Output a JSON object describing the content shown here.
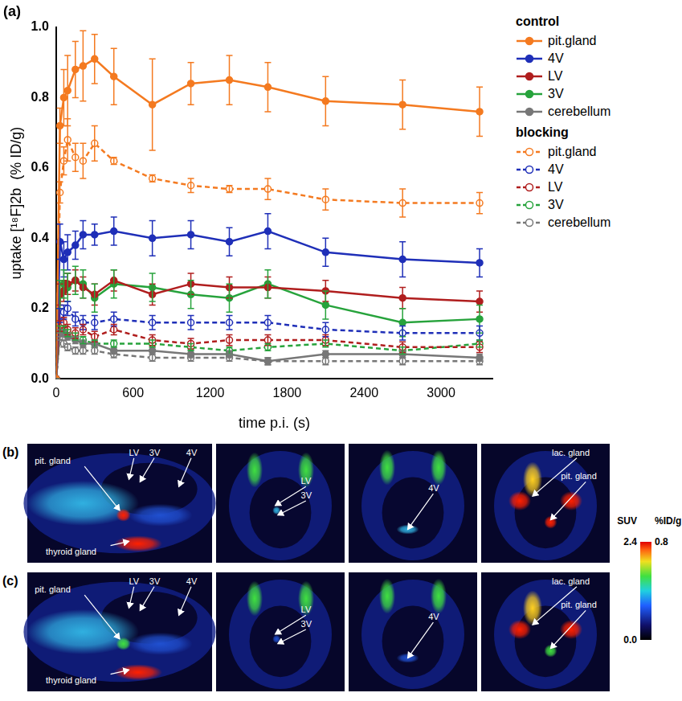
{
  "chart_data": {
    "type": "line",
    "panel_label": "(a)",
    "x_label": "time p.i. (s)",
    "y_label": "uptake [¹⁸F]2b  (% ID/g)",
    "x": [
      0,
      30,
      60,
      90,
      150,
      210,
      300,
      450,
      750,
      1050,
      1350,
      1650,
      2100,
      2700,
      3300
    ],
    "xlim": [
      0,
      3400
    ],
    "xticks": [
      0,
      600,
      1200,
      1800,
      2400,
      3000
    ],
    "ylim": [
      0,
      1
    ],
    "yticks": [
      {
        "value": 0,
        "label": "0.0"
      },
      0.2,
      0.4,
      0.6,
      0.8,
      {
        "value": 1,
        "label": "1.0"
      }
    ],
    "grid": false,
    "legend": "right",
    "series": [
      {
        "name": "pit.gland",
        "group": "control",
        "color": "#f47a20",
        "marker": "circle",
        "line_style": "solid",
        "values": [
          0,
          0.72,
          0.8,
          0.82,
          0.88,
          0.89,
          0.91,
          0.86,
          0.78,
          0.84,
          0.85,
          0.83,
          0.79,
          0.78,
          0.76
        ],
        "errors": [
          0,
          0.05,
          0.08,
          0.1,
          0.08,
          0.1,
          0.07,
          0.08,
          0.13,
          0.06,
          0.07,
          0.07,
          0.07,
          0.07,
          0.07
        ]
      },
      {
        "name": "4V",
        "group": "control",
        "color": "#1f2fb8",
        "marker": "circle",
        "line_style": "solid",
        "values": [
          0,
          0.39,
          0.34,
          0.36,
          0.38,
          0.41,
          0.41,
          0.42,
          0.4,
          0.41,
          0.39,
          0.42,
          0.36,
          0.34,
          0.33
        ],
        "errors": [
          0,
          0.05,
          0.05,
          0.05,
          0.04,
          0.04,
          0.03,
          0.04,
          0.05,
          0.04,
          0.04,
          0.05,
          0.04,
          0.05,
          0.04
        ]
      },
      {
        "name": "LV",
        "group": "control",
        "color": "#b01e1e",
        "marker": "circle",
        "line_style": "solid",
        "values": [
          0,
          0.24,
          0.25,
          0.27,
          0.28,
          0.26,
          0.24,
          0.28,
          0.24,
          0.27,
          0.26,
          0.26,
          0.25,
          0.23,
          0.22
        ],
        "errors": [
          0,
          0.03,
          0.03,
          0.03,
          0.03,
          0.03,
          0.03,
          0.03,
          0.03,
          0.03,
          0.03,
          0.03,
          0.03,
          0.03,
          0.03
        ]
      },
      {
        "name": "3V",
        "group": "control",
        "color": "#27a33c",
        "marker": "circle",
        "line_style": "solid",
        "values": [
          0,
          0.24,
          0.27,
          0.26,
          0.28,
          0.27,
          0.23,
          0.27,
          0.26,
          0.24,
          0.23,
          0.27,
          0.21,
          0.16,
          0.17
        ],
        "errors": [
          0,
          0.04,
          0.04,
          0.04,
          0.04,
          0.04,
          0.04,
          0.04,
          0.04,
          0.04,
          0.04,
          0.04,
          0.04,
          0.04,
          0.04
        ]
      },
      {
        "name": "cerebellum",
        "group": "control",
        "color": "#777777",
        "marker": "circle",
        "line_style": "solid",
        "values": [
          0,
          0.13,
          0.13,
          0.12,
          0.11,
          0.1,
          0.1,
          0.08,
          0.08,
          0.07,
          0.07,
          0.05,
          0.07,
          0.07,
          0.06
        ],
        "errors": [
          0,
          0.01,
          0.01,
          0.01,
          0.01,
          0.01,
          0.01,
          0.01,
          0.01,
          0.01,
          0.01,
          0.01,
          0.01,
          0.01,
          0.01
        ]
      },
      {
        "name": "pit.gland",
        "group": "blocking",
        "color": "#f47a20",
        "marker": "open circle",
        "line_style": "dashed",
        "values": [
          0,
          0.53,
          0.62,
          0.68,
          0.63,
          0.62,
          0.67,
          0.62,
          0.57,
          0.55,
          0.54,
          0.54,
          0.51,
          0.5,
          0.5
        ],
        "errors": [
          0,
          0.03,
          0.04,
          0.06,
          0.04,
          0.05,
          0.05,
          0.01,
          0.01,
          0.02,
          0.01,
          0.03,
          0.03,
          0.04,
          0.03
        ]
      },
      {
        "name": "4V",
        "group": "blocking",
        "color": "#1f2fb8",
        "marker": "open circle",
        "line_style": "dashed",
        "values": [
          0,
          0.18,
          0.19,
          0.2,
          0.17,
          0.16,
          0.16,
          0.17,
          0.16,
          0.16,
          0.16,
          0.16,
          0.14,
          0.13,
          0.13
        ],
        "errors": [
          0,
          0.02,
          0.02,
          0.02,
          0.02,
          0.02,
          0.02,
          0.02,
          0.02,
          0.02,
          0.02,
          0.02,
          0.02,
          0.02,
          0.02
        ]
      },
      {
        "name": "LV",
        "group": "blocking",
        "color": "#b01e1e",
        "marker": "open circle",
        "line_style": "dashed",
        "values": [
          0,
          0.15,
          0.16,
          0.14,
          0.13,
          0.14,
          0.12,
          0.14,
          0.11,
          0.1,
          0.11,
          0.11,
          0.11,
          0.09,
          0.09
        ],
        "errors": [
          0,
          0.015,
          0.015,
          0.015,
          0.015,
          0.015,
          0.015,
          0.015,
          0.015,
          0.015,
          0.015,
          0.015,
          0.015,
          0.015,
          0.015
        ]
      },
      {
        "name": "3V",
        "group": "blocking",
        "color": "#27a33c",
        "marker": "open circle",
        "line_style": "dashed",
        "values": [
          0,
          0.14,
          0.14,
          0.13,
          0.12,
          0.11,
          0.1,
          0.1,
          0.1,
          0.09,
          0.08,
          0.09,
          0.1,
          0.08,
          0.1
        ],
        "errors": [
          0,
          0.01,
          0.01,
          0.01,
          0.01,
          0.01,
          0.01,
          0.01,
          0.01,
          0.01,
          0.01,
          0.01,
          0.01,
          0.01,
          0.01
        ]
      },
      {
        "name": "cerebellum",
        "group": "blocking",
        "color": "#777777",
        "marker": "open circle",
        "line_style": "dashed",
        "values": [
          0,
          0.12,
          0.1,
          0.09,
          0.08,
          0.08,
          0.08,
          0.07,
          0.06,
          0.06,
          0.06,
          0.05,
          0.05,
          0.05,
          0.05
        ],
        "errors": [
          0,
          0.01,
          0.01,
          0.01,
          0.01,
          0.01,
          0.01,
          0.01,
          0.01,
          0.01,
          0.01,
          0.01,
          0.01,
          0.01,
          0.01
        ]
      }
    ]
  },
  "image_panels": [
    {
      "label": "(b)",
      "images": [
        {
          "labels": [
            "pit. gland",
            "LV",
            "3V",
            "4V",
            "thyroid gland"
          ]
        },
        {
          "labels": [
            "LV",
            "3V"
          ]
        },
        {
          "labels": [
            "4V"
          ]
        },
        {
          "labels": [
            "lac. gland",
            "pit. gland"
          ]
        }
      ]
    },
    {
      "label": "(c)",
      "images": [
        {
          "labels": [
            "pit. gland",
            "LV",
            "3V",
            "4V",
            "thyroid gland"
          ]
        },
        {
          "labels": [
            "LV",
            "3V"
          ]
        },
        {
          "labels": [
            "4V"
          ]
        },
        {
          "labels": [
            "lac. gland",
            "pit. gland"
          ]
        }
      ]
    }
  ],
  "colorbar": {
    "scales": [
      {
        "label": "SUV",
        "range": [
          0,
          2.4
        ],
        "ticks": [
          {
            "value": 0,
            "label": "0.0"
          },
          {
            "value": 2.4,
            "label": "2.4"
          }
        ]
      },
      {
        "label": "%ID/g",
        "range": [
          0,
          0.8
        ],
        "ticks": [
          0.8
        ]
      }
    ]
  }
}
